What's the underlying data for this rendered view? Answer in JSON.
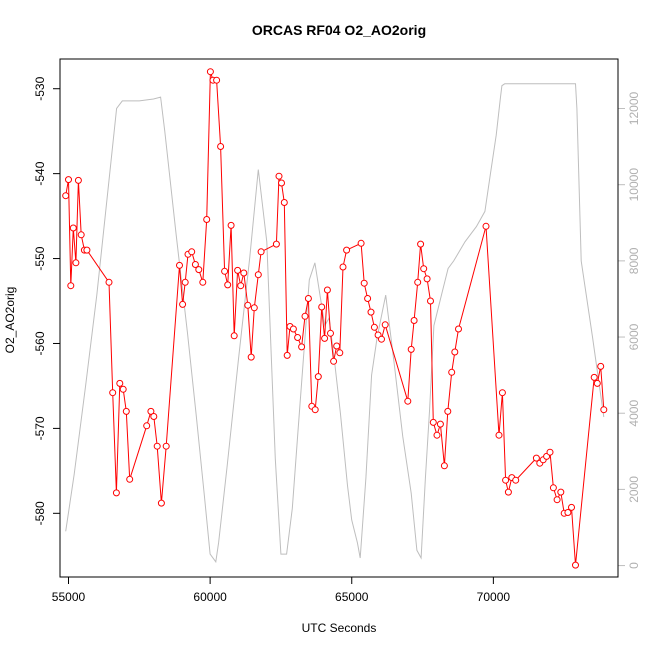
{
  "chart_data": {
    "type": "line",
    "title": "ORCAS RF04 O2_AO2orig",
    "xlabel": "UTC Seconds",
    "ylabel": "O2_AO2orig",
    "xlim": [
      54700,
      74400
    ],
    "ylim_left": [
      -587.5,
      -526.5
    ],
    "ylim_right": [
      -300,
      13300
    ],
    "x_ticks": [
      55000,
      60000,
      65000,
      70000
    ],
    "x_tick_labels": [
      "55000",
      "60000",
      "65000",
      "70000"
    ],
    "y_left_ticks": [
      -530,
      -540,
      -550,
      -560,
      -570,
      -580
    ],
    "y_left_tick_labels": [
      "-530",
      "-540",
      "-550",
      "-560",
      "-570",
      "-580"
    ],
    "y_right_ticks": [
      0,
      2000,
      4000,
      6000,
      8000,
      10000,
      12000
    ],
    "y_right_tick_labels": [
      "0",
      "2000",
      "4000",
      "6000",
      "8000",
      "10000",
      "12000"
    ],
    "colors": {
      "o2_series": "#ff0000",
      "altitude_series": "#bebebe"
    },
    "series": [
      {
        "axis": "left",
        "style": "points-and-lines",
        "x": [
          54900,
          55000,
          55080,
          55170,
          55260,
          55350,
          55450,
          55560,
          55650,
          56430,
          56560,
          56690,
          56810,
          56930,
          57040,
          57160,
          57760,
          57910,
          58010,
          58130,
          58280,
          58450,
          58920,
          59030,
          59120,
          59220,
          59350,
          59480,
          59600,
          59740,
          59880,
          60010,
          60100,
          60230,
          60370,
          60510,
          60620,
          60740,
          60850,
          60970,
          61080,
          61190,
          61330,
          61450,
          61560,
          61700,
          61800,
          62340,
          62430,
          62520,
          62620,
          62720,
          62820,
          62940,
          63090,
          63230,
          63350,
          63470,
          63590,
          63710,
          63820,
          63940,
          64040,
          64140,
          64250,
          64360,
          64470,
          64580,
          64690,
          64820,
          65330,
          65440,
          65560,
          65680,
          65800,
          65930,
          66050,
          66180,
          66980,
          67100,
          67200,
          67330,
          67430,
          67540,
          67660,
          67780,
          67880,
          68010,
          68130,
          68270,
          68390,
          68530,
          68640,
          68770,
          69740,
          70200,
          70320,
          70430,
          70530,
          70650,
          70790,
          71520,
          71640,
          71760,
          71880,
          72000,
          72120,
          72250,
          72380,
          72500,
          72630,
          72760,
          72900,
          73560,
          73670,
          73790,
          73900
        ],
        "y": [
          -542.6,
          -540.7,
          -553.2,
          -546.4,
          -550.5,
          -540.8,
          -547.2,
          -549.0,
          -549.0,
          -552.8,
          -565.8,
          -577.6,
          -564.7,
          -565.4,
          -568.0,
          -576.0,
          -569.7,
          -568.0,
          -568.6,
          -572.1,
          -578.8,
          -572.1,
          -550.8,
          -555.4,
          -552.8,
          -549.5,
          -549.2,
          -550.7,
          -551.3,
          -552.8,
          -545.4,
          -528.0,
          -529.0,
          -529.0,
          -536.8,
          -551.5,
          -553.1,
          -546.1,
          -559.1,
          -551.4,
          -553.2,
          -551.7,
          -555.5,
          -561.6,
          -555.8,
          -551.9,
          -549.2,
          -548.3,
          -540.3,
          -541.1,
          -543.4,
          -561.4,
          -558.0,
          -558.3,
          -559.3,
          -560.4,
          -556.8,
          -554.7,
          -567.4,
          -567.8,
          -563.9,
          -555.7,
          -559.4,
          -553.7,
          -558.8,
          -562.1,
          -560.3,
          -561.1,
          -551.0,
          -549.0,
          -548.2,
          -552.9,
          -554.7,
          -556.3,
          -558.1,
          -559.0,
          -559.5,
          -557.8,
          -566.8,
          -560.7,
          -557.3,
          -552.8,
          -548.3,
          -551.2,
          -552.4,
          -555.0,
          -569.3,
          -570.8,
          -569.5,
          -574.4,
          -568.0,
          -563.4,
          -561.0,
          -558.3,
          -546.2,
          -570.8,
          -565.8,
          -576.1,
          -577.5,
          -575.8,
          -576.1,
          -573.5,
          -574.1,
          -573.7,
          -573.3,
          -572.8,
          -577.0,
          -578.4,
          -577.5,
          -580.0,
          -579.9,
          -579.3,
          -586.1,
          -564.0,
          -564.7,
          -562.7,
          -567.8
        ]
      },
      {
        "axis": "right",
        "style": "line",
        "x": [
          54900,
          55200,
          55600,
          56000,
          56300,
          56700,
          56900,
          57500,
          58000,
          58250,
          58400,
          58800,
          59200,
          59500,
          59800,
          60000,
          60200,
          60300,
          60600,
          61000,
          61400,
          61700,
          62000,
          62300,
          62500,
          62700,
          62900,
          63100,
          63300,
          63500,
          63700,
          63900,
          64050,
          64200,
          64400,
          64600,
          64850,
          65000,
          65200,
          65300,
          65500,
          65700,
          65900,
          66200,
          66500,
          66800,
          67100,
          67300,
          67450,
          67600,
          67750,
          67900,
          68200,
          68400,
          68600,
          68800,
          69000,
          69400,
          69700,
          69900,
          70100,
          70250,
          70300,
          70400,
          70600,
          71000,
          71500,
          72000,
          72500,
          72900,
          72950,
          73100,
          73500,
          73900
        ],
        "y": [
          900,
          2400,
          4700,
          7100,
          9200,
          12000,
          12200,
          12200,
          12250,
          12300,
          11400,
          8700,
          6100,
          4000,
          1800,
          300,
          100,
          600,
          2600,
          5400,
          8100,
          10400,
          8500,
          2800,
          300,
          300,
          1500,
          3500,
          5500,
          7500,
          7950,
          7000,
          6300,
          6500,
          5300,
          4000,
          2100,
          1200,
          600,
          200,
          2300,
          5000,
          6000,
          7100,
          5300,
          3400,
          1900,
          400,
          200,
          2300,
          4100,
          6300,
          7200,
          7800,
          8000,
          8250,
          8500,
          8900,
          9300,
          10300,
          11300,
          12300,
          12600,
          12650,
          12650,
          12650,
          12650,
          12650,
          12650,
          12650,
          12000,
          8000,
          6000,
          3900
        ]
      }
    ]
  }
}
